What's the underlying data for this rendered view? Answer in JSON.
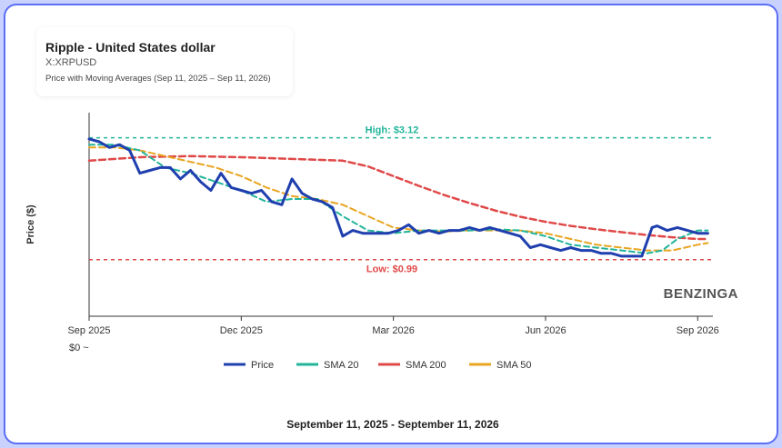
{
  "header": {
    "title": "Ripple - United States dollar",
    "symbol": "X:XRPUSD",
    "subtitle": "Price with Moving Averages (Sep 11, 2025 – Sep 11, 2026)"
  },
  "watermark": "BENZINGA",
  "footer_range": "September 11, 2025 - September 11, 2026",
  "colors": {
    "price": "#1f3fae",
    "sma20": "#22b59a",
    "sma200": "#e04848",
    "sma50": "#e8a521",
    "high": "#22b59a",
    "low": "#e04848"
  },
  "chart_data": {
    "type": "line",
    "title": "Ripple - United States dollar",
    "ylabel": "Price ($)",
    "xlabel": "",
    "x_ticks": [
      "Sep 2025",
      "Dec 2025",
      "Mar 2026",
      "Jun 2026",
      "Sep 2026"
    ],
    "x_tick_months": [
      0,
      3,
      6,
      9,
      12
    ],
    "y_tick_labels": [
      "$0"
    ],
    "ylim": [
      0,
      3.4
    ],
    "xlim_months": [
      0,
      12.3
    ],
    "grid": false,
    "legend_position": "bottom",
    "annotations": [
      {
        "label": "High: $3.12",
        "value": 3.12
      },
      {
        "label": "Low: $0.99",
        "value": 0.99
      }
    ],
    "series": [
      {
        "name": "Price",
        "x": [
          0,
          0.2,
          0.4,
          0.6,
          0.8,
          1.0,
          1.2,
          1.4,
          1.6,
          1.8,
          2.0,
          2.2,
          2.4,
          2.6,
          2.8,
          3.0,
          3.2,
          3.4,
          3.6,
          3.8,
          4.0,
          4.2,
          4.4,
          4.6,
          4.8,
          5.0,
          5.2,
          5.4,
          5.5,
          5.7,
          5.9,
          6.1,
          6.3,
          6.5,
          6.7,
          6.9,
          7.1,
          7.3,
          7.5,
          7.7,
          7.9,
          8.1,
          8.3,
          8.5,
          8.7,
          8.9,
          9.1,
          9.3,
          9.5,
          9.7,
          9.9,
          10.1,
          10.3,
          10.5,
          10.7,
          10.9,
          11.1,
          11.2,
          11.4,
          11.6,
          11.8,
          12.0,
          12.2
        ],
        "values": [
          3.1,
          3.05,
          2.95,
          3.0,
          2.9,
          2.5,
          2.55,
          2.6,
          2.6,
          2.4,
          2.55,
          2.35,
          2.2,
          2.5,
          2.25,
          2.2,
          2.15,
          2.2,
          2.0,
          1.95,
          2.4,
          2.15,
          2.05,
          2.0,
          1.9,
          1.4,
          1.5,
          1.45,
          1.45,
          1.45,
          1.45,
          1.5,
          1.6,
          1.45,
          1.5,
          1.45,
          1.5,
          1.5,
          1.55,
          1.5,
          1.55,
          1.5,
          1.45,
          1.4,
          1.2,
          1.25,
          1.2,
          1.15,
          1.2,
          1.15,
          1.15,
          1.1,
          1.1,
          1.05,
          1.05,
          1.05,
          1.55,
          1.58,
          1.5,
          1.55,
          1.5,
          1.45,
          1.45
        ]
      },
      {
        "name": "SMA 20",
        "x": [
          0,
          0.5,
          1.0,
          1.5,
          2.0,
          2.5,
          3.0,
          3.5,
          4.0,
          4.5,
          5.0,
          5.5,
          6.0,
          6.5,
          7.0,
          7.5,
          8.0,
          8.5,
          9.0,
          9.5,
          10.0,
          10.5,
          11.0,
          11.3,
          11.6,
          12.0,
          12.2
        ],
        "values": [
          3.0,
          3.0,
          2.9,
          2.6,
          2.5,
          2.35,
          2.2,
          2.0,
          2.05,
          2.05,
          1.75,
          1.5,
          1.45,
          1.5,
          1.5,
          1.5,
          1.52,
          1.5,
          1.4,
          1.25,
          1.2,
          1.15,
          1.1,
          1.15,
          1.35,
          1.5,
          1.5
        ]
      },
      {
        "name": "SMA 200",
        "x": [
          0,
          1.0,
          2.0,
          3.0,
          4.0,
          5.0,
          5.5,
          6.0,
          6.5,
          7.0,
          7.5,
          8.0,
          8.5,
          9.0,
          9.5,
          10.0,
          10.5,
          11.0,
          11.5,
          12.0,
          12.2
        ],
        "values": [
          2.72,
          2.78,
          2.8,
          2.78,
          2.75,
          2.72,
          2.62,
          2.45,
          2.28,
          2.12,
          1.98,
          1.85,
          1.74,
          1.65,
          1.58,
          1.52,
          1.47,
          1.42,
          1.38,
          1.35,
          1.35
        ]
      },
      {
        "name": "SMA 50",
        "x": [
          0,
          0.5,
          1.0,
          1.5,
          2.0,
          2.5,
          3.0,
          3.5,
          4.0,
          4.5,
          5.0,
          5.5,
          6.0,
          6.5,
          7.0,
          7.5,
          8.0,
          8.5,
          9.0,
          9.5,
          10.0,
          10.5,
          11.0,
          11.5,
          12.0,
          12.2
        ],
        "values": [
          2.95,
          2.95,
          2.9,
          2.8,
          2.7,
          2.6,
          2.45,
          2.25,
          2.1,
          2.05,
          1.95,
          1.75,
          1.55,
          1.5,
          1.48,
          1.5,
          1.5,
          1.5,
          1.45,
          1.35,
          1.25,
          1.2,
          1.15,
          1.15,
          1.25,
          1.28
        ]
      }
    ]
  }
}
